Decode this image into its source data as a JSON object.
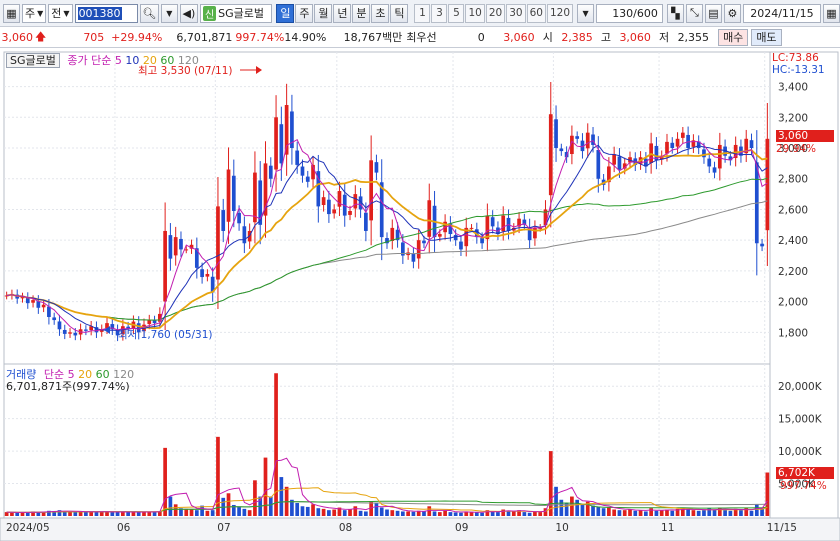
{
  "toolbar": {
    "type_label": "주",
    "market_label": "전",
    "code": "001380",
    "name_badge": "신",
    "name": "SG글로벌",
    "periods": [
      {
        "label": "일",
        "active": true
      },
      {
        "label": "주",
        "active": false
      },
      {
        "label": "월",
        "active": false
      },
      {
        "label": "년",
        "active": false
      },
      {
        "label": "분",
        "active": false
      },
      {
        "label": "초",
        "active": false
      },
      {
        "label": "틱",
        "active": false
      }
    ],
    "intervals": [
      "1",
      "3",
      "5",
      "10",
      "20",
      "30",
      "60",
      "120"
    ],
    "count": "130/600",
    "date": "2024/11/15"
  },
  "quote": {
    "price": "3,060",
    "change": "705",
    "change_pct": "+29.94%",
    "volume": "6,701,871",
    "volume_pct": "997.74%",
    "turnover_pct": "14.90%",
    "amount": "18,767백만",
    "priority_label": "최우선",
    "priority_value": "0",
    "ref_price": "3,060",
    "open_label": "시",
    "open": "2,385",
    "high_label": "고",
    "high": "3,060",
    "low_label": "저",
    "low": "2,355",
    "buy_label": "매수",
    "sell_label": "매도"
  },
  "price_panel": {
    "stock_tag": "SG글로벌",
    "ma_label": "종가 단순",
    "ma_periods": [
      "5",
      "10",
      "20",
      "60",
      "120"
    ],
    "lc": "LC:73.86",
    "hc": "HC:-13.31",
    "high_note": "최고 3,530 (07/11)",
    "low_note": "최저 1,760 (05/31)",
    "current_label": "3,060",
    "current_pct": "29.94%"
  },
  "volume_panel": {
    "title": "거래량",
    "ma_label": "단순",
    "ma_periods": [
      "5",
      "20",
      "60",
      "120"
    ],
    "current_value": "6,701,871주(997.74%)",
    "current_label": "6,702K",
    "current_pct": "997.74%"
  },
  "colors": {
    "up": "#e0201c",
    "down": "#1f4fd0",
    "ma5": "#c21fb0",
    "ma10": "#1f33b8",
    "ma20": "#e6a40f",
    "ma60": "#2d9a2d",
    "ma120": "#8a8a8a"
  },
  "chart_data": {
    "type": "line",
    "price_axis": {
      "ticks": [
        1800,
        2000,
        2200,
        2400,
        2600,
        2800,
        3000,
        3200,
        3400
      ],
      "labels": [
        "1,800",
        "2,000",
        "2,200",
        "2,400",
        "2,600",
        "2,800",
        "3,000",
        "3,200",
        "3,400"
      ],
      "ylim": [
        1620,
        3560
      ]
    },
    "volume_axis": {
      "ticks": [
        0,
        5000000,
        10000000,
        15000000,
        20000000
      ],
      "labels": [
        "",
        "5,000K",
        "10,000K",
        "15,000K",
        "20,000K"
      ],
      "ylim": [
        0,
        22500000
      ]
    },
    "month_labels": [
      {
        "label": "2024/05",
        "index": 0
      },
      {
        "label": "06",
        "index": 21
      },
      {
        "label": "07",
        "index": 40
      },
      {
        "label": "08",
        "index": 63
      },
      {
        "label": "09",
        "index": 85
      },
      {
        "label": "10",
        "index": 104
      },
      {
        "label": "11",
        "index": 124
      },
      {
        "label": "11/15",
        "index": 144
      }
    ],
    "close": [
      2040,
      2050,
      2020,
      2030,
      1990,
      2010,
      1960,
      1980,
      1900,
      1880,
      1820,
      1790,
      1800,
      1780,
      1820,
      1810,
      1840,
      1800,
      1820,
      1860,
      1820,
      1780,
      1840,
      1820,
      1870,
      1800,
      1850,
      1880,
      1860,
      1920,
      2460,
      2280,
      2420,
      2340,
      2340,
      2370,
      2220,
      2160,
      2180,
      2060,
      2620,
      2460,
      2860,
      2590,
      2510,
      2380,
      2460,
      2840,
      2500,
      2900,
      2800,
      3200,
      2900,
      3280,
      3000,
      2890,
      2820,
      2780,
      2890,
      2620,
      2680,
      2570,
      2600,
      2720,
      2560,
      2590,
      2700,
      2600,
      2460,
      2920,
      2840,
      2420,
      2380,
      2480,
      2400,
      2300,
      2320,
      2260,
      2400,
      2380,
      2660,
      2420,
      2440,
      2520,
      2440,
      2400,
      2340,
      2480,
      2480,
      2420,
      2380,
      2560,
      2490,
      2440,
      2560,
      2460,
      2480,
      2540,
      2500,
      2400,
      2480,
      2480,
      2600,
      3220,
      3000,
      2980,
      2940,
      3080,
      3060,
      2980,
      3100,
      3020,
      2800,
      2760,
      2880,
      2960,
      2860,
      2900,
      2940,
      2890,
      2940,
      2880,
      3030,
      2920,
      2950,
      3040,
      3000,
      3060,
      3100,
      3000,
      3050,
      3000,
      2940,
      2880,
      2840,
      3020,
      2950,
      2920,
      3020,
      2950,
      3060,
      3000,
      2380,
      2360,
      3060
    ],
    "volume": [
      600000,
      550000,
      500000,
      580000,
      520000,
      700000,
      600000,
      650000,
      800000,
      750000,
      900000,
      700000,
      650000,
      600000,
      700000,
      620000,
      640000,
      600000,
      660000,
      700000,
      580000,
      560000,
      640000,
      600000,
      680000,
      560000,
      600000,
      660000,
      640000,
      700000,
      10500000,
      3000000,
      1800000,
      1200000,
      1100000,
      1000000,
      900000,
      1600000,
      800000,
      900000,
      12200000,
      2800000,
      3500000,
      1700000,
      1400000,
      1100000,
      900000,
      5500000,
      3000000,
      9000000,
      3000000,
      22000000,
      6000000,
      4500000,
      2500000,
      2000000,
      1500000,
      1400000,
      1800000,
      1200000,
      1100000,
      900000,
      1000000,
      1300000,
      900000,
      1000000,
      1500000,
      800000,
      700000,
      2300000,
      2000000,
      1300000,
      1000000,
      900000,
      800000,
      700000,
      700000,
      650000,
      800000,
      700000,
      1500000,
      700000,
      600000,
      800000,
      600000,
      550000,
      500000,
      700000,
      650000,
      550000,
      500000,
      900000,
      700000,
      600000,
      1000000,
      800000,
      700000,
      900000,
      600000,
      500000,
      700000,
      600000,
      1200000,
      10000000,
      4500000,
      2500000,
      2000000,
      3000000,
      2500000,
      1800000,
      2200000,
      1600000,
      1400000,
      1200000,
      1300000,
      1000000,
      900000,
      900000,
      1000000,
      800000,
      900000,
      700000,
      1200000,
      800000,
      900000,
      1000000,
      800000,
      1100000,
      1300000,
      1000000,
      900000,
      800000,
      900000,
      1200000,
      1000000,
      1300000,
      900000,
      800000,
      1100000,
      900000,
      1200000,
      800000,
      1800000,
      1200000,
      6702000
    ]
  }
}
